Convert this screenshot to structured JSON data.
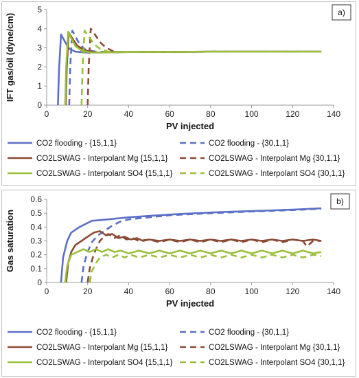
{
  "legend": [
    {
      "name": "CO2 flooding - {15,1,1}",
      "color": "#5b6fc6",
      "dash": false
    },
    {
      "name": "CO2 flooding - {30,1,1}",
      "color": "#5b6fc6",
      "dash": true
    },
    {
      "name": "CO2LSWAG - Interpolant Mg {15,1,1}",
      "color": "#8b4a34",
      "dash": false
    },
    {
      "name": "CO2LSWAG - Interpolant Mg {30,1,1}",
      "color": "#8b4a34",
      "dash": true
    },
    {
      "name": "CO2LSWAG - Interpolant SO4 {15,1,1}",
      "color": "#9cbf3c",
      "dash": false
    },
    {
      "name": "CO2LSWAG - Interpolant SO4 {30,1,1}",
      "color": "#9cbf3c",
      "dash": true
    }
  ],
  "chart_data": [
    {
      "type": "line",
      "panel_label": "a)",
      "xlabel": "PV injected",
      "ylabel": "IFT gas/oil (dyne/cm)",
      "xlim": [
        0,
        140
      ],
      "ylim": [
        0,
        5
      ],
      "xticks": [
        "0",
        "20",
        "40",
        "60",
        "80",
        "100",
        "120",
        "140"
      ],
      "yticks": [
        "0",
        "1",
        "2",
        "3",
        "4",
        "5"
      ],
      "series": [
        {
          "name": "CO2 flooding - {15,1,1}",
          "x": [
            5.5,
            6.0,
            7.0,
            9.0,
            11.0,
            14.0,
            20.0,
            40.0,
            80.0,
            134.0
          ],
          "y": [
            0,
            1.8,
            3.7,
            3.3,
            2.95,
            2.8,
            2.75,
            2.78,
            2.8,
            2.8
          ]
        },
        {
          "name": "CO2 flooding - {30,1,1}",
          "x": [
            11.0,
            11.5,
            12.5,
            14.0,
            16.0,
            19.0,
            24.0,
            40.0,
            80.0,
            134.0
          ],
          "y": [
            0,
            2.0,
            3.9,
            3.6,
            3.2,
            2.9,
            2.8,
            2.78,
            2.8,
            2.8
          ]
        },
        {
          "name": "CO2LSWAG - Interpolant Mg {15,1,1}",
          "x": [
            9.3,
            9.8,
            10.8,
            12.5,
            15.0,
            19.0,
            25.0,
            40.0,
            80.0,
            134.0
          ],
          "y": [
            0,
            2.0,
            3.8,
            3.5,
            3.1,
            2.85,
            2.75,
            2.78,
            2.8,
            2.8
          ]
        },
        {
          "name": "CO2LSWAG - Interpolant Mg {30,1,1}",
          "x": [
            20.0,
            20.5,
            21.5,
            23.5,
            26.0,
            29.0,
            33.0,
            40.0,
            80.0,
            134.0
          ],
          "y": [
            0,
            2.0,
            4.0,
            3.7,
            3.3,
            3.0,
            2.8,
            2.78,
            2.8,
            2.8
          ]
        },
        {
          "name": "CO2LSWAG - Interpolant SO4 {15,1,1}",
          "x": [
            9.0,
            9.5,
            10.5,
            12.0,
            14.0,
            17.0,
            22.0,
            40.0,
            80.0,
            134.0
          ],
          "y": [
            0,
            2.0,
            3.85,
            3.5,
            3.1,
            2.85,
            2.75,
            2.78,
            2.8,
            2.8
          ]
        },
        {
          "name": "CO2LSWAG - Interpolant SO4 {30,1,1}",
          "x": [
            17.0,
            17.5,
            18.5,
            20.5,
            23.0,
            26.0,
            30.0,
            40.0,
            80.0,
            134.0
          ],
          "y": [
            0,
            2.0,
            3.9,
            3.6,
            3.2,
            2.95,
            2.8,
            2.78,
            2.8,
            2.8
          ]
        }
      ]
    },
    {
      "type": "line",
      "panel_label": "b)",
      "xlabel": "PV injected",
      "ylabel": "Gas saturation",
      "xlim": [
        0,
        140
      ],
      "ylim": [
        0,
        0.6
      ],
      "xticks": [
        "0",
        "20",
        "40",
        "60",
        "80",
        "100",
        "120",
        "140"
      ],
      "yticks": [
        "0",
        "0.1",
        "0.2",
        "0.3",
        "0.4",
        "0.5",
        "0.6"
      ],
      "series": [
        {
          "name": "CO2 flooding - {15,1,1}",
          "x": [
            7.0,
            8.0,
            10.0,
            12.0,
            16.0,
            22.0,
            30.0,
            40.0,
            60.0,
            80.0,
            100.0,
            120.0,
            134.0
          ],
          "y": [
            0,
            0.18,
            0.3,
            0.36,
            0.4,
            0.445,
            0.455,
            0.47,
            0.49,
            0.505,
            0.515,
            0.525,
            0.535
          ]
        },
        {
          "name": "CO2 flooding - {30,1,1}",
          "x": [
            17.0,
            18.0,
            20.0,
            22.0,
            25.0,
            28.0,
            32.0,
            36.0,
            40.0,
            60.0,
            80.0,
            100.0,
            120.0,
            134.0
          ],
          "y": [
            0,
            0.12,
            0.22,
            0.29,
            0.34,
            0.37,
            0.41,
            0.44,
            0.455,
            0.485,
            0.5,
            0.512,
            0.522,
            0.532
          ]
        },
        {
          "name": "CO2LSWAG - Interpolant Mg {15,1,1}",
          "x": [
            9.5,
            10.5,
            12.0,
            14.0,
            17.0,
            20.0,
            23.0,
            26.0,
            29.0,
            32.0,
            35.0,
            38.0,
            41.0,
            44.0,
            47.0,
            50.0,
            55.0,
            60.0,
            65.0,
            70.0,
            75.0,
            80.0,
            85.0,
            90.0,
            95.0,
            100.0,
            105.0,
            110.0,
            115.0,
            120.0,
            125.0,
            130.0,
            134.0
          ],
          "y": [
            0,
            0.14,
            0.22,
            0.27,
            0.3,
            0.33,
            0.36,
            0.37,
            0.34,
            0.35,
            0.32,
            0.33,
            0.31,
            0.32,
            0.3,
            0.31,
            0.3,
            0.31,
            0.3,
            0.31,
            0.3,
            0.31,
            0.3,
            0.31,
            0.3,
            0.31,
            0.3,
            0.31,
            0.3,
            0.31,
            0.3,
            0.31,
            0.3
          ]
        },
        {
          "name": "CO2LSWAG - Interpolant Mg {30,1,1}",
          "x": [
            20.0,
            21.0,
            22.5,
            24.0,
            26.0,
            28.0,
            30.0,
            33.0,
            36.0,
            39.0,
            42.0,
            45.0,
            50.0,
            55.0,
            60.0,
            65.0,
            70.0,
            75.0,
            80.0,
            85.0,
            90.0,
            95.0,
            100.0,
            105.0,
            110.0,
            115.0,
            120.0,
            125.0,
            127.0,
            130.0,
            134.0
          ],
          "y": [
            0,
            0.1,
            0.18,
            0.24,
            0.3,
            0.33,
            0.35,
            0.32,
            0.34,
            0.31,
            0.32,
            0.3,
            0.31,
            0.29,
            0.31,
            0.29,
            0.31,
            0.29,
            0.31,
            0.29,
            0.31,
            0.29,
            0.31,
            0.29,
            0.31,
            0.29,
            0.31,
            0.3,
            0.26,
            0.3,
            0.3
          ]
        },
        {
          "name": "CO2LSWAG - Interpolant SO4 {15,1,1}",
          "x": [
            9.0,
            10.0,
            12.0,
            15.0,
            18.0,
            21.0,
            24.0,
            27.0,
            30.0,
            33.0,
            36.0,
            40.0,
            45.0,
            50.0,
            55.0,
            60.0,
            65.0,
            70.0,
            75.0,
            80.0,
            85.0,
            90.0,
            95.0,
            100.0,
            105.0,
            110.0,
            115.0,
            120.0,
            125.0,
            130.0,
            134.0
          ],
          "y": [
            0,
            0.12,
            0.2,
            0.22,
            0.24,
            0.22,
            0.24,
            0.22,
            0.24,
            0.22,
            0.23,
            0.21,
            0.23,
            0.21,
            0.23,
            0.21,
            0.23,
            0.21,
            0.23,
            0.21,
            0.23,
            0.21,
            0.23,
            0.21,
            0.23,
            0.21,
            0.23,
            0.21,
            0.23,
            0.21,
            0.22
          ]
        },
        {
          "name": "CO2LSWAG - Interpolant SO4 {30,1,1}",
          "x": [
            21.0,
            22.0,
            24.0,
            26.0,
            29.0,
            32.0,
            35.0,
            38.0,
            41.0,
            45.0,
            50.0,
            55.0,
            60.0,
            65.0,
            70.0,
            75.0,
            80.0,
            85.0,
            90.0,
            95.0,
            100.0,
            105.0,
            110.0,
            115.0,
            120.0,
            125.0,
            130.0,
            134.0
          ],
          "y": [
            0,
            0.08,
            0.14,
            0.18,
            0.2,
            0.18,
            0.2,
            0.18,
            0.2,
            0.18,
            0.2,
            0.18,
            0.2,
            0.18,
            0.2,
            0.18,
            0.2,
            0.18,
            0.2,
            0.18,
            0.2,
            0.18,
            0.2,
            0.18,
            0.2,
            0.18,
            0.2,
            0.19
          ]
        }
      ]
    }
  ]
}
